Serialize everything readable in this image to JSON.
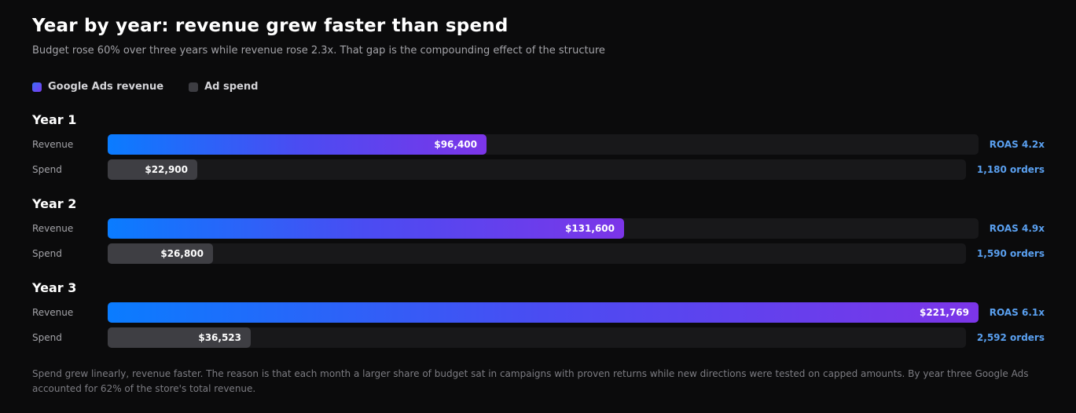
{
  "title": "Year by year: revenue grew faster than spend",
  "subtitle": "Budget rose 60% over three years while revenue rose 2.3x. That gap is the compounding effect of the structure",
  "legend": {
    "revenue": "Google Ads revenue",
    "spend": "Ad spend"
  },
  "colors": {
    "revenue_start": "#0a7cff",
    "revenue_end": "#7c35e8",
    "spend": "#3e3e43",
    "accent_text": "#5aa0f0",
    "background": "#0b0b0c"
  },
  "labels": {
    "revenue": "Revenue",
    "spend": "Spend"
  },
  "chart_data": {
    "type": "bar",
    "orientation": "horizontal",
    "categories": [
      "Year 1",
      "Year 2",
      "Year 3"
    ],
    "scale_max": 221769,
    "series": [
      {
        "name": "Google Ads revenue",
        "values": [
          96400,
          131600,
          221769
        ],
        "labels": [
          "$96,400",
          "$131,600",
          "$221,769"
        ]
      },
      {
        "name": "Ad spend",
        "values": [
          22900,
          26800,
          36523
        ],
        "labels": [
          "$22,900",
          "$26,800",
          "$36,523"
        ]
      }
    ],
    "annotations": {
      "roas": [
        "ROAS 4.2x",
        "ROAS 4.9x",
        "ROAS 6.1x"
      ],
      "orders": [
        "1,180 orders",
        "1,590 orders",
        "2,592 orders"
      ]
    },
    "legend_position": "top-left"
  },
  "footnote": "Spend grew linearly, revenue faster. The reason is that each month a larger share of budget sat in campaigns with proven returns while new directions were tested on capped amounts. By year three Google Ads accounted for 62% of the store's total revenue."
}
